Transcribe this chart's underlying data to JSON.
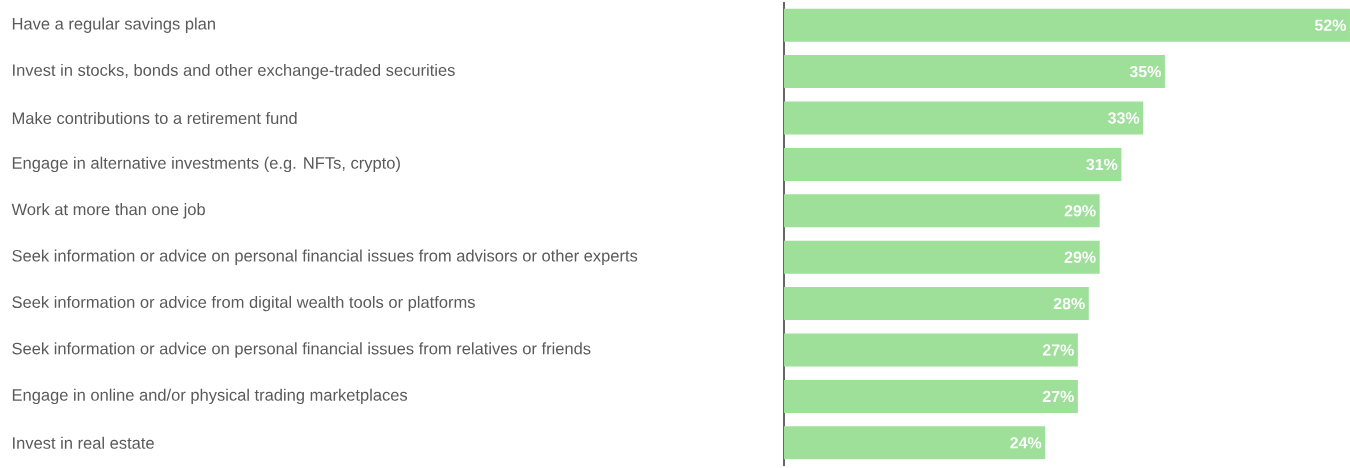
{
  "chart_data": {
    "type": "bar",
    "orientation": "horizontal",
    "color": "#9ee09a",
    "categories": [
      "Have a regular savings plan",
      "Invest in stocks, bonds and other exchange-traded securities",
      "Make contributions to a retirement fund",
      "Engage in alternative investments (e.g. NFTs, crypto)",
      "Work at more than one job",
      "Seek information or advice on personal financial issues from advisors or other experts",
      "Seek information or advice from digital wealth tools or platforms",
      "Seek information or advice on personal financial issues from relatives or friends",
      "Engage in online and/or physical trading marketplaces",
      "Invest in real estate"
    ],
    "values": [
      52,
      35,
      33,
      31,
      29,
      29,
      28,
      27,
      27,
      24
    ],
    "value_labels": [
      "52%",
      "35%",
      "33%",
      "31%",
      "29%",
      "29%",
      "28%",
      "27%",
      "27%",
      "24%"
    ]
  }
}
